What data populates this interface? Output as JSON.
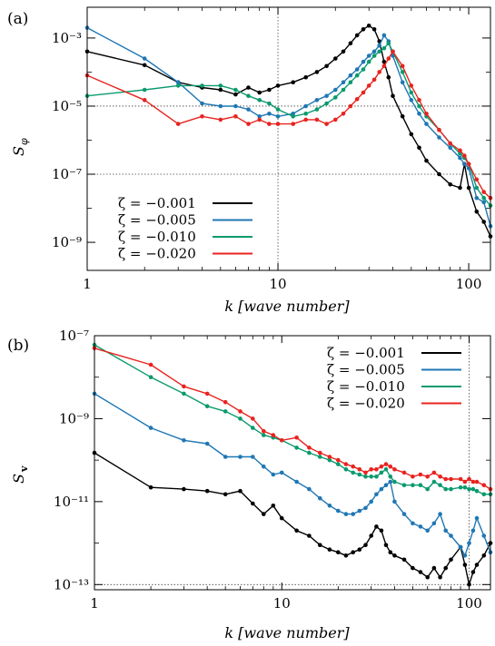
{
  "chart_data": [
    {
      "type": "line",
      "panel_label": "(a)",
      "ylabel_main": "S",
      "ylabel_sub": "φ",
      "xlabel": "k [wave number]",
      "x_scale": "log",
      "y_scale": "log",
      "xlim": [
        1,
        130
      ],
      "ylim": [
        1.5e-10,
        0.008
      ],
      "x_ticks": [
        1,
        10,
        100
      ],
      "x_tick_labels": [
        "1",
        "10",
        "100"
      ],
      "y_ticks": [
        1e-09,
        1e-07,
        1e-05,
        0.001
      ],
      "y_tick_labels": [
        "10⁻⁹",
        "10⁻⁷",
        "10⁻⁵",
        "10⁻³"
      ],
      "ref_lines": {
        "x": [
          10
        ],
        "y": [
          1e-05,
          1e-07
        ]
      },
      "legend_position": "bottom-left",
      "series": [
        {
          "name": "ζ = −0.001",
          "color": "#000000",
          "x": [
            1,
            2,
            3,
            4,
            5,
            6,
            7,
            8,
            9,
            10,
            12,
            14,
            16,
            18,
            20,
            22,
            24,
            26,
            28,
            30,
            32,
            34,
            36,
            38,
            40,
            45,
            50,
            55,
            60,
            70,
            80,
            90,
            95,
            100,
            110,
            120,
            130
          ],
          "y": [
            0.0004,
            0.00016,
            5e-05,
            3.5e-05,
            3e-05,
            2.2e-05,
            3.5e-05,
            2.5e-05,
            3e-05,
            4e-05,
            5e-05,
            7e-05,
            0.0001,
            0.00015,
            0.00025,
            0.0004,
            0.0007,
            0.0012,
            0.0018,
            0.0023,
            0.0018,
            0.0008,
            0.0002,
            7e-05,
            2e-05,
            5e-06,
            1.5e-06,
            6e-07,
            2.5e-07,
            1e-07,
            5e-08,
            4e-08,
            2e-07,
            4e-08,
            8e-09,
            4e-09,
            1.5e-09
          ]
        },
        {
          "name": "ζ = −0.005",
          "color": "#1f77b4",
          "x": [
            1,
            2,
            3,
            4,
            5,
            6,
            7,
            8,
            9,
            10,
            12,
            14,
            16,
            18,
            20,
            22,
            24,
            26,
            28,
            30,
            32,
            34,
            36,
            38,
            40,
            45,
            50,
            55,
            60,
            70,
            80,
            90,
            95,
            100,
            110,
            120,
            130
          ],
          "y": [
            0.002,
            0.00025,
            5e-05,
            1.2e-05,
            1e-05,
            1e-05,
            8e-06,
            5e-06,
            6e-06,
            5e-06,
            6e-06,
            1e-05,
            1.5e-05,
            2e-05,
            3e-05,
            5e-05,
            8e-05,
            0.00012,
            0.0002,
            0.0003,
            0.0004,
            0.0006,
            0.0012,
            0.0008,
            0.0003,
            5e-05,
            1.5e-05,
            6e-06,
            3e-06,
            1.2e-06,
            6e-07,
            3e-07,
            2e-07,
            1.5e-07,
            2e-08,
            1.5e-08,
            3e-09
          ]
        },
        {
          "name": "ζ = −0.010",
          "color": "#0a9a6e",
          "x": [
            1,
            2,
            3,
            4,
            5,
            6,
            7,
            8,
            9,
            10,
            12,
            14,
            16,
            18,
            20,
            22,
            24,
            26,
            28,
            30,
            32,
            34,
            36,
            38,
            40,
            45,
            50,
            55,
            60,
            70,
            80,
            90,
            95,
            100,
            110,
            120,
            130
          ],
          "y": [
            2e-05,
            3e-05,
            4e-05,
            4e-05,
            4e-05,
            3e-05,
            2e-05,
            1.5e-05,
            1.2e-05,
            8e-06,
            5e-06,
            6e-06,
            8e-06,
            1.2e-05,
            1.8e-05,
            3e-05,
            5e-05,
            8e-05,
            0.00012,
            0.0002,
            0.0003,
            0.0004,
            0.0005,
            0.0007,
            0.0004,
            0.0001,
            2.5e-05,
            1e-05,
            5e-06,
            2e-06,
            8e-07,
            4e-07,
            3e-07,
            2e-07,
            4e-08,
            2e-08,
            1.2e-08
          ]
        },
        {
          "name": "ζ = −0.020",
          "color": "#e8231f",
          "x": [
            1,
            2,
            3,
            4,
            5,
            6,
            7,
            8,
            9,
            10,
            12,
            14,
            16,
            18,
            20,
            22,
            24,
            26,
            28,
            30,
            32,
            34,
            36,
            38,
            40,
            45,
            50,
            55,
            60,
            70,
            80,
            90,
            95,
            100,
            110,
            120,
            130
          ],
          "y": [
            8e-05,
            1.5e-05,
            3e-06,
            5e-06,
            4e-06,
            5e-06,
            3e-06,
            4e-06,
            3e-06,
            3e-06,
            3e-06,
            4e-06,
            4e-06,
            3e-06,
            4e-06,
            6e-06,
            1e-05,
            1.6e-05,
            2.5e-05,
            4e-05,
            6e-05,
            0.0001,
            0.00015,
            0.00025,
            0.0004,
            0.00015,
            4e-05,
            1.5e-05,
            6e-06,
            2e-06,
            8e-07,
            5e-07,
            3.5e-07,
            2e-07,
            7e-08,
            3e-08,
            2e-08
          ]
        }
      ]
    },
    {
      "type": "line",
      "panel_label": "(b)",
      "ylabel_main": "S",
      "ylabel_sub": "v",
      "xlabel": "k [wave number]",
      "x_scale": "log",
      "y_scale": "log",
      "xlim": [
        1,
        130
      ],
      "ylim": [
        7.5e-14,
        1e-07
      ],
      "x_ticks": [
        1,
        10,
        100
      ],
      "x_tick_labels": [
        "1",
        "10",
        "100"
      ],
      "y_ticks": [
        1e-13,
        1e-11,
        1e-09,
        1e-07
      ],
      "y_tick_labels": [
        "10⁻¹³",
        "10⁻¹¹",
        "10⁻⁹",
        "10⁻⁷"
      ],
      "ref_lines": {
        "x": [
          100
        ],
        "y": [
          1e-13
        ]
      },
      "legend_position": "top-right",
      "series": [
        {
          "name": "ζ = −0.001",
          "color": "#000000",
          "x": [
            1,
            2,
            3,
            4,
            5,
            6,
            7,
            8,
            9,
            10,
            12,
            14,
            16,
            18,
            20,
            22,
            24,
            26,
            28,
            30,
            32,
            34,
            36,
            38,
            40,
            45,
            50,
            55,
            60,
            65,
            70,
            75,
            80,
            90,
            95,
            100,
            105,
            110,
            120,
            130
          ],
          "y": [
            1.5e-10,
            2.2e-11,
            2e-11,
            1.8e-11,
            1.5e-11,
            1.8e-11,
            9e-12,
            5e-12,
            8e-12,
            4e-12,
            2e-12,
            1.5e-12,
            9e-13,
            7e-13,
            6e-13,
            5e-13,
            6e-13,
            7e-13,
            9e-13,
            1.5e-12,
            2.5e-12,
            2e-12,
            9e-13,
            6e-13,
            5e-13,
            4e-13,
            2.5e-13,
            2e-13,
            1.5e-13,
            2.5e-13,
            1.5e-13,
            2.5e-13,
            4e-13,
            8e-13,
            3e-13,
            1e-13,
            2e-13,
            3e-13,
            5e-13,
            1e-12
          ]
        },
        {
          "name": "ζ = −0.005",
          "color": "#1f77b4",
          "x": [
            1,
            2,
            3,
            4,
            5,
            6,
            7,
            8,
            9,
            10,
            12,
            14,
            16,
            18,
            20,
            22,
            24,
            26,
            28,
            30,
            32,
            34,
            36,
            38,
            40,
            45,
            50,
            55,
            60,
            65,
            70,
            75,
            80,
            90,
            95,
            100,
            105,
            110,
            120,
            130
          ],
          "y": [
            4e-09,
            6e-10,
            3e-10,
            2.5e-10,
            1.2e-10,
            1.2e-10,
            1.2e-10,
            7e-11,
            4.5e-11,
            5e-11,
            3e-11,
            2e-11,
            1.2e-11,
            8e-12,
            6e-12,
            5e-12,
            5e-12,
            6e-12,
            7e-12,
            1e-11,
            1.5e-11,
            2e-11,
            2.5e-11,
            3e-11,
            1e-11,
            5e-12,
            3e-12,
            2.5e-12,
            2e-12,
            3e-12,
            5e-12,
            2e-12,
            1.5e-12,
            8e-13,
            5e-13,
            1e-12,
            2e-12,
            4e-12,
            1.5e-12,
            6e-13
          ]
        },
        {
          "name": "ζ = −0.010",
          "color": "#0a9a6e",
          "x": [
            1,
            2,
            3,
            4,
            5,
            6,
            7,
            8,
            9,
            10,
            12,
            14,
            16,
            18,
            20,
            22,
            24,
            26,
            28,
            30,
            32,
            34,
            36,
            38,
            40,
            45,
            50,
            55,
            60,
            65,
            70,
            75,
            80,
            90,
            95,
            100,
            105,
            110,
            120,
            130
          ],
          "y": [
            6e-08,
            1e-08,
            4e-09,
            2e-09,
            1.5e-09,
            1e-09,
            6e-10,
            4e-10,
            3.5e-10,
            3e-10,
            2e-10,
            1.5e-10,
            1.2e-10,
            1e-10,
            8e-11,
            6e-11,
            5e-11,
            4.5e-11,
            4e-11,
            4e-11,
            4e-11,
            5e-11,
            6e-11,
            4e-11,
            3e-11,
            2.5e-11,
            2.5e-11,
            2.5e-11,
            2e-11,
            3e-11,
            2.5e-11,
            2e-11,
            2e-11,
            2.2e-11,
            2.2e-11,
            2e-11,
            2e-11,
            1.8e-11,
            1.5e-11,
            1.5e-11
          ]
        },
        {
          "name": "ζ = −0.020",
          "color": "#e8231f",
          "x": [
            1,
            2,
            3,
            4,
            5,
            6,
            7,
            8,
            9,
            10,
            12,
            14,
            16,
            18,
            20,
            22,
            24,
            26,
            28,
            30,
            32,
            34,
            36,
            38,
            40,
            45,
            50,
            55,
            60,
            65,
            70,
            75,
            80,
            90,
            95,
            100,
            105,
            110,
            120,
            130
          ],
          "y": [
            5e-08,
            2e-08,
            6e-09,
            4e-09,
            2.5e-09,
            1.5e-09,
            1e-09,
            5e-10,
            4e-10,
            3e-10,
            3.5e-10,
            2e-10,
            1.5e-10,
            1.2e-10,
            1e-10,
            8e-11,
            7e-11,
            6e-11,
            5e-11,
            6e-11,
            6e-11,
            7e-11,
            8e-11,
            7e-11,
            6e-11,
            5e-11,
            4e-11,
            4.5e-11,
            4e-11,
            5e-11,
            4e-11,
            3.5e-11,
            3.5e-11,
            3.5e-11,
            3e-11,
            3.5e-11,
            3e-11,
            3e-11,
            2.5e-11,
            2e-11
          ]
        }
      ]
    }
  ]
}
